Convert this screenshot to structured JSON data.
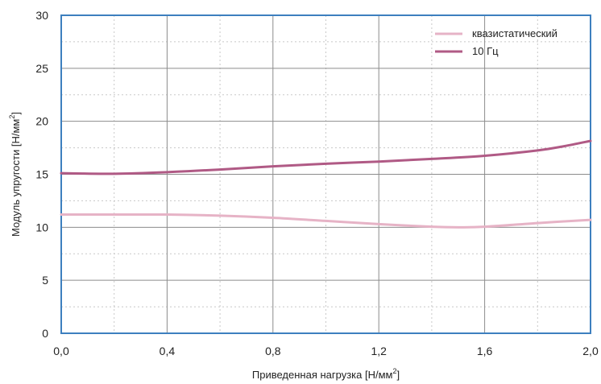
{
  "chart_data": {
    "type": "line",
    "xlabel": "Приведенная нагрузка [Н/мм",
    "xlabel_sup": "2",
    "xlabel_end": "]",
    "ylabel": "Модуль упругости [Н/мм",
    "ylabel_sup": "2",
    "ylabel_end": "]",
    "xlim": [
      0,
      2.0
    ],
    "ylim": [
      0,
      30
    ],
    "x_ticks": [
      0,
      0.4,
      0.8,
      1.2,
      1.6,
      2.0
    ],
    "x_tick_labels": [
      "0,0",
      "0,4",
      "0,8",
      "1,2",
      "1,6",
      "2,0"
    ],
    "x_minor_ticks": [
      0.2,
      0.6,
      1.0,
      1.4,
      1.8
    ],
    "y_ticks": [
      0,
      5,
      10,
      15,
      20,
      25,
      30
    ],
    "y_tick_labels": [
      "0",
      "5",
      "10",
      "15",
      "20",
      "25",
      "30"
    ],
    "y_minor_ticks": [
      2.5,
      7.5,
      12.5,
      17.5,
      22.5,
      27.5
    ],
    "grid": true,
    "legend_position": "top-right",
    "series": [
      {
        "name": "квазистатический",
        "color": "#e6b3c6",
        "x": [
          0,
          0.2,
          0.4,
          0.6,
          0.8,
          1.0,
          1.2,
          1.4,
          1.5,
          1.6,
          1.8,
          2.0
        ],
        "y": [
          11.2,
          11.2,
          11.2,
          11.1,
          10.9,
          10.6,
          10.3,
          10.05,
          10.0,
          10.05,
          10.4,
          10.7
        ]
      },
      {
        "name": "10 Гц",
        "color": "#b05a85",
        "x": [
          0,
          0.2,
          0.4,
          0.6,
          0.8,
          1.0,
          1.2,
          1.4,
          1.6,
          1.8,
          1.9,
          2.0
        ],
        "y": [
          15.1,
          15.05,
          15.2,
          15.45,
          15.75,
          16.0,
          16.2,
          16.45,
          16.75,
          17.25,
          17.65,
          18.15
        ]
      }
    ]
  }
}
